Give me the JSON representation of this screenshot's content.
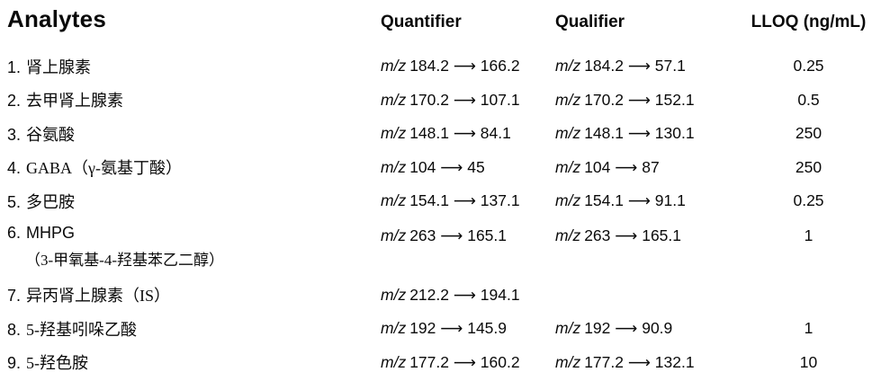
{
  "colors": {
    "background": "#ffffff",
    "text": "#0a0a0a"
  },
  "table": {
    "headers": {
      "analytes": "Analytes",
      "quantifier": "Quantifier",
      "qualifier": "Qualifier",
      "lloq": "LLOQ (ng/mL)"
    },
    "rows": [
      {
        "num": "1.",
        "name": "肾上腺素",
        "quantifier": {
          "mz": "m/z",
          "transition": "184.2 ⟶ 166.2"
        },
        "qualifier": {
          "mz": "m/z",
          "transition": "184.2 ⟶ 57.1"
        },
        "lloq": "0.25"
      },
      {
        "num": "2.",
        "name": "去甲肾上腺素",
        "quantifier": {
          "mz": "m/z",
          "transition": "170.2 ⟶ 107.1"
        },
        "qualifier": {
          "mz": "m/z",
          "transition": "170.2 ⟶ 152.1"
        },
        "lloq": "0.5"
      },
      {
        "num": "3.",
        "name": "谷氨酸",
        "quantifier": {
          "mz": "m/z",
          "transition": "148.1 ⟶ 84.1"
        },
        "qualifier": {
          "mz": "m/z",
          "transition": "148.1 ⟶ 130.1"
        },
        "lloq": "250"
      },
      {
        "num": "4.",
        "name": "GABA（γ-氨基丁酸）",
        "quantifier": {
          "mz": "m/z",
          "transition": "104 ⟶ 45"
        },
        "qualifier": {
          "mz": "m/z",
          "transition": "104 ⟶ 87"
        },
        "lloq": "250"
      },
      {
        "num": "5.",
        "name": "多巴胺",
        "quantifier": {
          "mz": "m/z",
          "transition": "154.1 ⟶ 137.1"
        },
        "qualifier": {
          "mz": "m/z",
          "transition": "154.1 ⟶ 91.1"
        },
        "lloq": "0.25"
      },
      {
        "num": "6.",
        "name": "MHPG",
        "subline": "（3-甲氧基-4-羟基苯乙二醇）",
        "quantifier": {
          "mz": "m/z",
          "transition": "263 ⟶ 165.1"
        },
        "qualifier": {
          "mz": "m/z",
          "transition": "263 ⟶ 165.1"
        },
        "lloq": "1"
      },
      {
        "num": "7.",
        "name": "异丙肾上腺素（IS）",
        "quantifier": {
          "mz": "m/z",
          "transition": "212.2 ⟶ 194.1"
        },
        "lloq": ""
      },
      {
        "num": "8.",
        "name": "5-羟基吲哚乙酸",
        "quantifier": {
          "mz": "m/z",
          "transition": "192 ⟶ 145.9"
        },
        "qualifier": {
          "mz": "m/z",
          "transition": "192 ⟶ 90.9"
        },
        "lloq": "1"
      },
      {
        "num": "9.",
        "name": "5-羟色胺",
        "quantifier": {
          "mz": "m/z",
          "transition": "177.2 ⟶ 160.2"
        },
        "qualifier": {
          "mz": "m/z",
          "transition": "177.2 ⟶ 132.1"
        },
        "lloq": "10"
      }
    ]
  }
}
